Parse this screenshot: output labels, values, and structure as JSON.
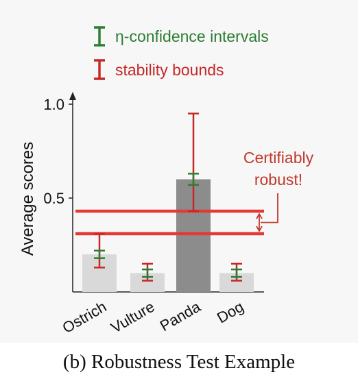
{
  "caption": "(b) Robustness Test Example",
  "chart_data": {
    "type": "bar",
    "categories": [
      "Ostrich",
      "Vulture",
      "Panda",
      "Dog"
    ],
    "values": [
      0.2,
      0.1,
      0.6,
      0.1
    ],
    "ylabel": "Average scores",
    "ylim": [
      0,
      1.0
    ],
    "yticks": [
      {
        "value": 0.5,
        "label": "0.5"
      },
      {
        "value": 1.0,
        "label": "1.0"
      }
    ],
    "bar_colors": [
      "#d9d9d9",
      "#d9d9d9",
      "#8c8c8c",
      "#d9d9d9"
    ],
    "confidence_intervals": [
      {
        "low": 0.18,
        "high": 0.22
      },
      {
        "low": 0.08,
        "high": 0.12
      },
      {
        "low": 0.57,
        "high": 0.63
      },
      {
        "low": 0.08,
        "high": 0.12
      }
    ],
    "stability_bounds": [
      {
        "low": 0.13,
        "high": 0.31
      },
      {
        "low": 0.06,
        "high": 0.15
      },
      {
        "low": 0.43,
        "high": 0.95
      },
      {
        "low": 0.06,
        "high": 0.15
      }
    ],
    "threshold_lines": [
      0.43,
      0.31
    ],
    "legend": [
      {
        "label": "η-confidence intervals",
        "color": "#2e7d32"
      },
      {
        "label": "stability bounds",
        "color": "#c62828"
      }
    ],
    "legend_position": "top",
    "annotation": {
      "lines": [
        "Certifiably",
        "robust!"
      ],
      "color": "#c0392b"
    },
    "grid": false
  }
}
